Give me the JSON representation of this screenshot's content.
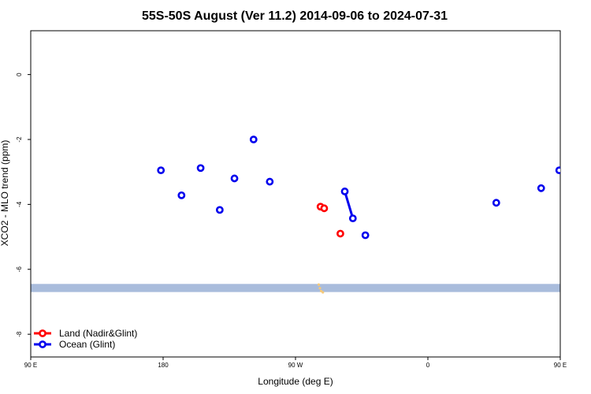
{
  "chart_data": {
    "type": "scatter",
    "title": "55S-50S August (Ver 11.2)   2014-09-06 to 2024-07-31",
    "xlabel": "Longitude (deg E)",
    "ylabel": "XCO2 - MLO trend (ppm)",
    "xlim": [
      90,
      450
    ],
    "ylim": [
      -8.7,
      1.35
    ],
    "x_ticks": [
      {
        "value": 90,
        "label": "90 E"
      },
      {
        "value": 180,
        "label": "180"
      },
      {
        "value": 270,
        "label": "90 W"
      },
      {
        "value": 360,
        "label": "0"
      },
      {
        "value": 450,
        "label": "90 E"
      }
    ],
    "y_ticks": [
      {
        "value": 0,
        "label": "0"
      },
      {
        "value": -2,
        "label": "-2"
      },
      {
        "value": -4,
        "label": "-4"
      },
      {
        "value": -6,
        "label": "-6"
      },
      {
        "value": -8,
        "label": "-8"
      }
    ],
    "series": [
      {
        "name": "Land (Nadir&Glint)",
        "color": "#ff0000",
        "points": [
          {
            "x": 287,
            "y": -4.07
          },
          {
            "x": 289.5,
            "y": -4.12
          },
          {
            "x": 300.5,
            "y": -4.9
          }
        ],
        "segments": []
      },
      {
        "name": "Ocean (Glint)",
        "color": "#0000ee",
        "points": [
          {
            "x": 178.5,
            "y": -2.95
          },
          {
            "x": 192.5,
            "y": -3.72
          },
          {
            "x": 205.5,
            "y": -2.88
          },
          {
            "x": 218.5,
            "y": -4.17
          },
          {
            "x": 228.5,
            "y": -3.2
          },
          {
            "x": 241.5,
            "y": -2.0
          },
          {
            "x": 252.5,
            "y": -3.3
          },
          {
            "x": 303.5,
            "y": -3.6
          },
          {
            "x": 309,
            "y": -4.43
          },
          {
            "x": 317.5,
            "y": -4.95
          },
          {
            "x": 406.5,
            "y": -3.95
          },
          {
            "x": 437,
            "y": -3.5
          },
          {
            "x": 449.3,
            "y": -2.95
          }
        ],
        "segments": [
          [
            {
              "x": 303.5,
              "y": -3.6
            },
            {
              "x": 309,
              "y": -4.43
            }
          ]
        ]
      }
    ],
    "band": {
      "y_top": -6.45,
      "y_bottom": -6.7,
      "color": "#a9bcdc"
    },
    "land_marks": [
      {
        "x": 285.8,
        "y": -6.47
      },
      {
        "x": 286.6,
        "y": -6.58
      },
      {
        "x": 287.4,
        "y": -6.67
      },
      {
        "x": 288.6,
        "y": -6.71
      }
    ],
    "land_mark_color": "#f5c97a",
    "legend_position": "bottom-left",
    "grid": false
  }
}
